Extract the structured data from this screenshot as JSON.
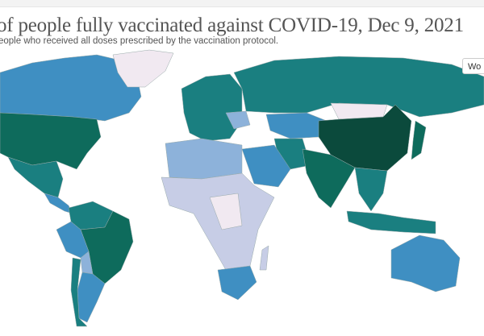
{
  "header": {
    "title": "of people fully vaccinated against COVID-19, Dec 9, 2021",
    "subtitle": "eople who received all doses prescribed by the vaccination protocol."
  },
  "controls": {
    "world_button_label": "Wo"
  },
  "colors": {
    "darkest": "#0b4a3c",
    "dark_green": "#0e6b5c",
    "teal": "#1a7f80",
    "blue": "#3f8fc2",
    "light_blue": "#8db2da",
    "pale": "#c7cde6",
    "very_pale": "#f1e9f1"
  }
}
